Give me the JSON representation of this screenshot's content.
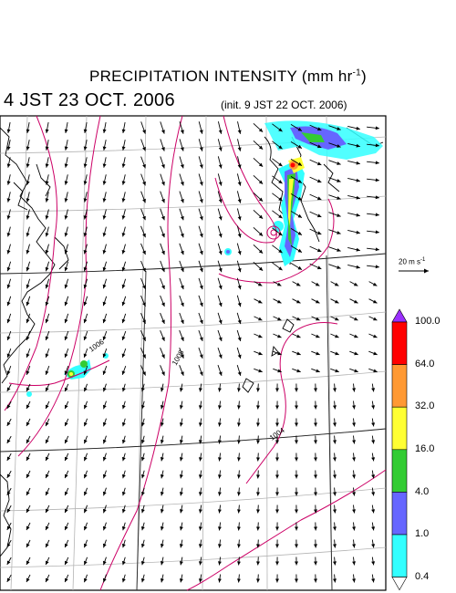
{
  "title": {
    "main": "PRECIPITATION INTENSITY (mm hr",
    "exponent": "-1",
    "close": ")"
  },
  "valid_time": "4 JST 23 OCT. 2006",
  "init_time": "(init. 9 JST 22 OCT. 2006)",
  "wind_scale": {
    "label": "20 m s",
    "exponent": "-1"
  },
  "isobar_labels": [
    "1006",
    "1008",
    "1004"
  ],
  "colorbar": {
    "labels": [
      "100.0",
      "64.0",
      "32.0",
      "16.0",
      "4.0",
      "1.0",
      "0.4"
    ],
    "colors": [
      "#9b30ff",
      "#ff0000",
      "#ff9933",
      "#ffff33",
      "#33cc33",
      "#6666ff",
      "#33ffff"
    ]
  },
  "colors": {
    "isobar": "#cc0066",
    "grid": "#b4b4b4",
    "coast": "#000000",
    "arrow": "#000000"
  }
}
